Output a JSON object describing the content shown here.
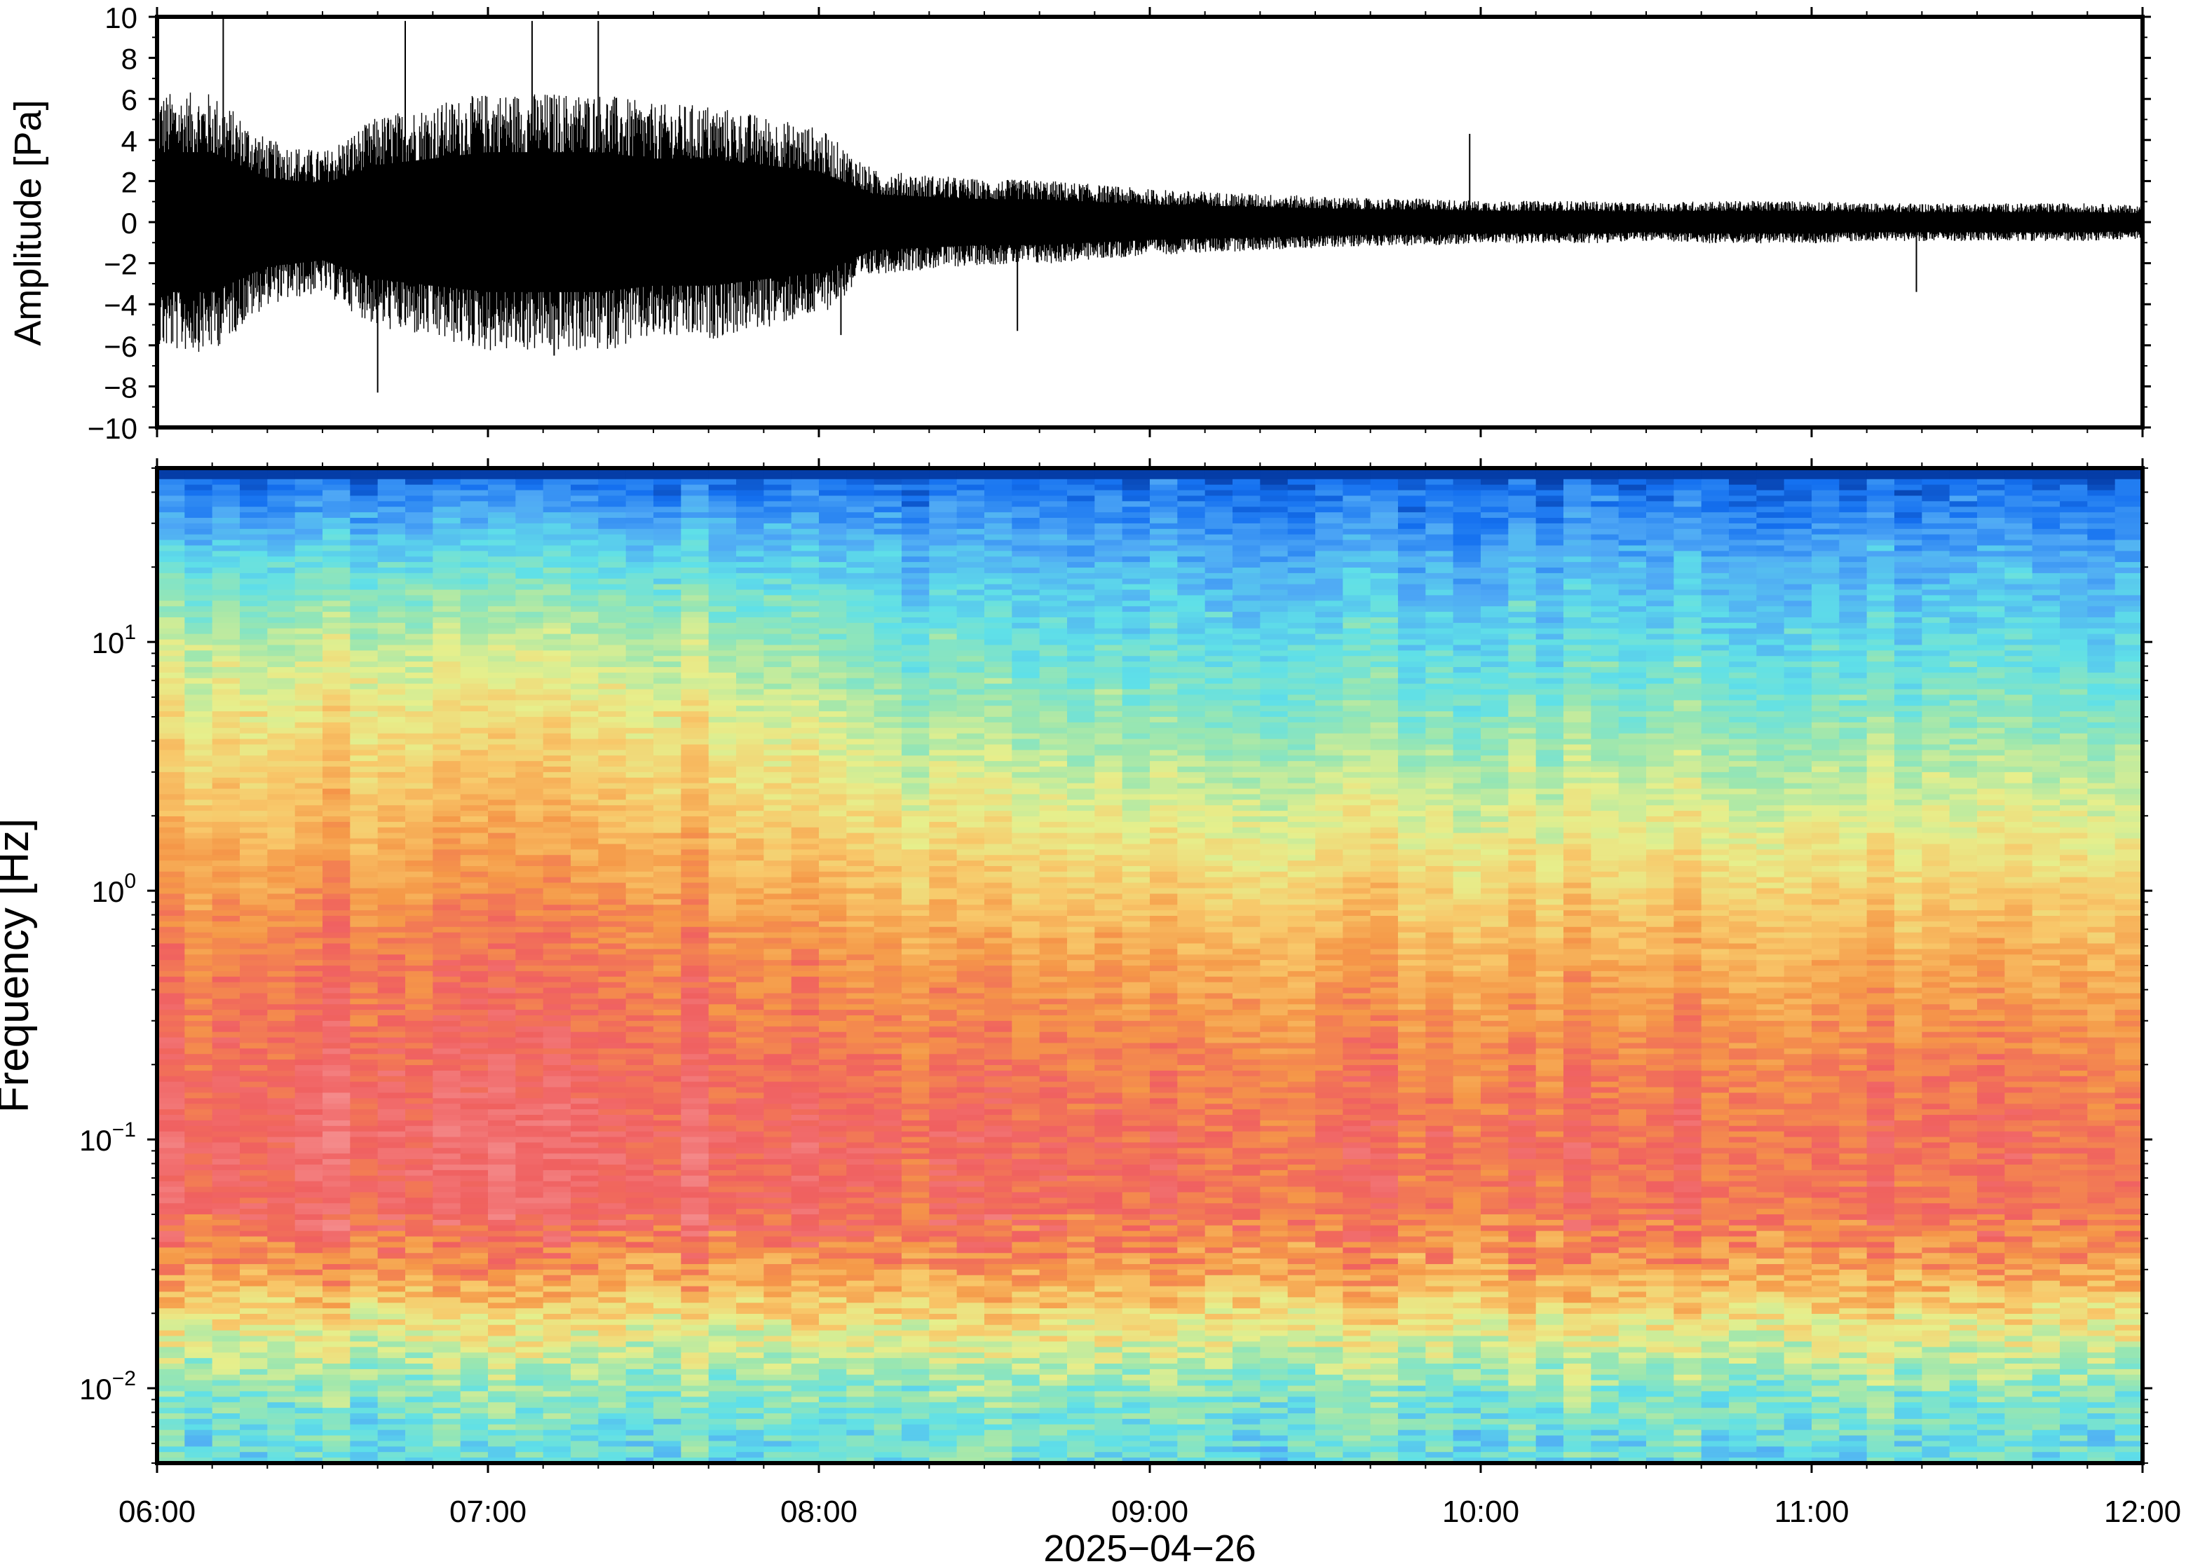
{
  "chart_data": [
    {
      "type": "line",
      "ylabel": "Amplitude [Pa]",
      "ylim": [
        -10,
        10
      ],
      "y_ticks": [
        "10",
        "8",
        "6",
        "4",
        "2",
        "0",
        "−2",
        "−4",
        "−6",
        "−8",
        "−10"
      ],
      "xlim": [
        "2025-04-26 06:00",
        "2025-04-26 12:00"
      ],
      "envelope": {
        "x": [
          "06:00",
          "06:10",
          "06:20",
          "06:30",
          "06:40",
          "06:50",
          "07:00",
          "07:10",
          "07:20",
          "07:30",
          "07:40",
          "07:50",
          "08:00",
          "08:10",
          "08:20",
          "08:30",
          "08:40",
          "08:50",
          "09:00",
          "09:10",
          "09:20",
          "09:30",
          "09:40",
          "09:50",
          "10:00",
          "10:10",
          "10:20",
          "10:30",
          "10:40",
          "10:50",
          "11:00",
          "11:10",
          "11:20",
          "11:30",
          "11:40",
          "11:50",
          "12:00"
        ],
        "upper": [
          5.5,
          5.5,
          3.5,
          3.0,
          4.5,
          5.0,
          5.5,
          5.5,
          5.5,
          5.0,
          5.0,
          4.5,
          4.0,
          2.2,
          2.0,
          1.8,
          1.8,
          1.6,
          1.4,
          1.3,
          1.2,
          1.1,
          1.0,
          1.0,
          0.9,
          0.9,
          0.9,
          0.8,
          0.9,
          0.9,
          0.9,
          0.8,
          0.8,
          0.8,
          0.8,
          0.8,
          0.7
        ],
        "lower": [
          -5.5,
          -5.5,
          -3.5,
          -3.0,
          -4.5,
          -5.0,
          -5.5,
          -5.5,
          -5.5,
          -5.0,
          -5.0,
          -4.5,
          -4.0,
          -2.2,
          -2.0,
          -1.8,
          -1.8,
          -1.6,
          -1.4,
          -1.3,
          -1.2,
          -1.1,
          -1.0,
          -1.0,
          -0.9,
          -0.9,
          -0.9,
          -0.8,
          -0.9,
          -0.9,
          -0.9,
          -0.8,
          -0.8,
          -0.8,
          -0.8,
          -0.8,
          -0.7
        ]
      },
      "spikes": [
        {
          "t": "06:12",
          "v": 10
        },
        {
          "t": "06:40",
          "v": -8.3
        },
        {
          "t": "06:45",
          "v": 9.8
        },
        {
          "t": "07:08",
          "v": 9.8
        },
        {
          "t": "07:12",
          "v": -6.5
        },
        {
          "t": "07:20",
          "v": 9.8
        },
        {
          "t": "08:04",
          "v": -5.5
        },
        {
          "t": "08:36",
          "v": -5.3
        },
        {
          "t": "09:58",
          "v": 4.3
        },
        {
          "t": "11:19",
          "v": -3.4
        }
      ]
    },
    {
      "type": "heatmap",
      "ylabel": "Frequency [Hz]",
      "yscale": "log",
      "ylim": [
        0.005,
        50
      ],
      "y_ticks": [
        {
          "value": 0.01,
          "base": "10",
          "exp": "−2"
        },
        {
          "value": 0.1,
          "base": "10",
          "exp": "−1"
        },
        {
          "value": 1,
          "base": "10",
          "exp": "0"
        },
        {
          "value": 10,
          "base": "10",
          "exp": "1"
        }
      ],
      "x_ticks": [
        "06:00",
        "07:00",
        "08:00",
        "09:00",
        "10:00",
        "11:00",
        "12:00"
      ],
      "xlabel": "2025−04−26",
      "colormap": [
        "#002a8c",
        "#1470f0",
        "#4fa8f5",
        "#5fe0e8",
        "#9ae6b0",
        "#e6ef8c",
        "#f8c86a",
        "#f59848",
        "#f06060",
        "#f48a8a"
      ],
      "note_power_profile": {
        "freq_hz": [
          45,
          20,
          10,
          5,
          2,
          1,
          0.5,
          0.2,
          0.1,
          0.05,
          0.03,
          0.02,
          0.01,
          0.006
        ],
        "level_before_0800": [
          0.12,
          0.35,
          0.5,
          0.6,
          0.7,
          0.78,
          0.84,
          0.88,
          0.92,
          0.9,
          0.78,
          0.62,
          0.42,
          0.35
        ],
        "level_after_0800": [
          0.1,
          0.25,
          0.33,
          0.42,
          0.55,
          0.65,
          0.74,
          0.82,
          0.86,
          0.85,
          0.76,
          0.62,
          0.42,
          0.35
        ]
      }
    }
  ]
}
